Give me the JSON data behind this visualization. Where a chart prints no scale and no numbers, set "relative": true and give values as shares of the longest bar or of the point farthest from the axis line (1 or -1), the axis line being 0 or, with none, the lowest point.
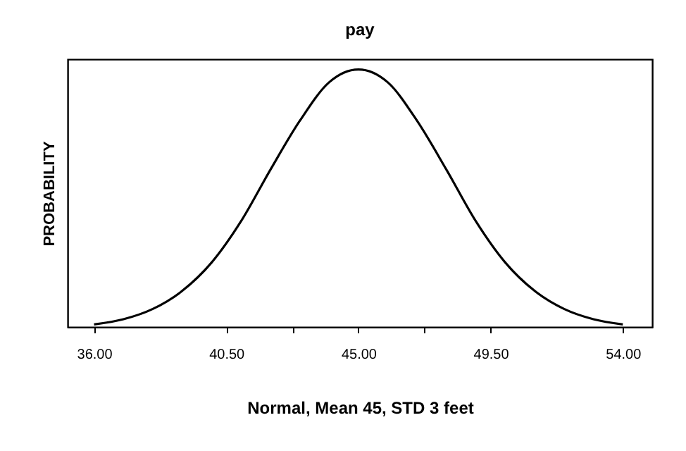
{
  "chart_data": {
    "type": "line",
    "title": "pay",
    "xlabel": "Normal, Mean 45, STD 3 feet",
    "ylabel": "PROBABILITY",
    "relative": true,
    "x": [
      36,
      37,
      38,
      39,
      40,
      41,
      42,
      43,
      44,
      45,
      46,
      47,
      48,
      49,
      50,
      51,
      52,
      53,
      54
    ],
    "series": [
      {
        "color": "#000000",
        "values": [
          0.01,
          0.03,
          0.07,
          0.14,
          0.25,
          0.41,
          0.61,
          0.8,
          0.95,
          1,
          0.95,
          0.8,
          0.61,
          0.41,
          0.25,
          0.14,
          0.07,
          0.03,
          0.01
        ]
      }
    ],
    "xlim": [
      35.1,
      55
    ],
    "xticks": [
      {
        "value": 36,
        "label": "36.00"
      },
      {
        "value": 40.5,
        "label": "40.50"
      },
      {
        "value": 42.75,
        "label": null
      },
      {
        "value": 45,
        "label": "45.00"
      },
      {
        "value": 47.25,
        "label": null
      },
      {
        "value": 49.5,
        "label": "49.50"
      },
      {
        "value": 54,
        "label": "54.00"
      }
    ],
    "tick_labels": "x",
    "grid": false,
    "marker": "none",
    "line_style": "solid"
  }
}
